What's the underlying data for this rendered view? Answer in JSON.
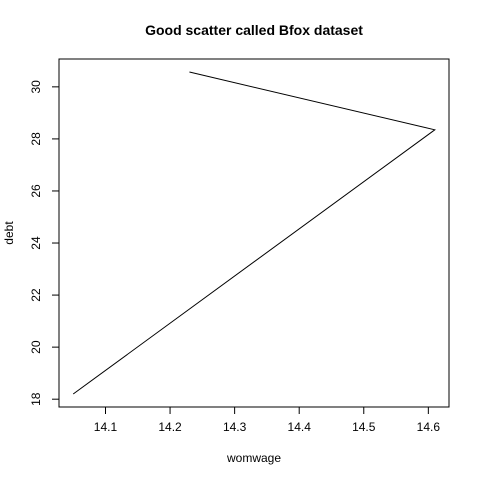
{
  "chart_data": {
    "type": "line",
    "title": "Good scatter called Bfox dataset",
    "xlabel": "womwage",
    "ylabel": "debt",
    "x": [
      14.05,
      14.61,
      14.23
    ],
    "y": [
      18.2,
      28.35,
      30.57
    ],
    "xlim": [
      14.028,
      14.632
    ],
    "ylim": [
      17.7,
      31.07
    ],
    "xticks": [
      14.1,
      14.2,
      14.3,
      14.4,
      14.5,
      14.6
    ],
    "xtick_labels": [
      "14.1",
      "14.2",
      "14.3",
      "14.4",
      "14.5",
      "14.6"
    ],
    "yticks": [
      18,
      20,
      22,
      24,
      26,
      28,
      30
    ],
    "ytick_labels": [
      "18",
      "20",
      "22",
      "24",
      "26",
      "28",
      "30"
    ],
    "grid": false,
    "line_color": "#000000"
  }
}
